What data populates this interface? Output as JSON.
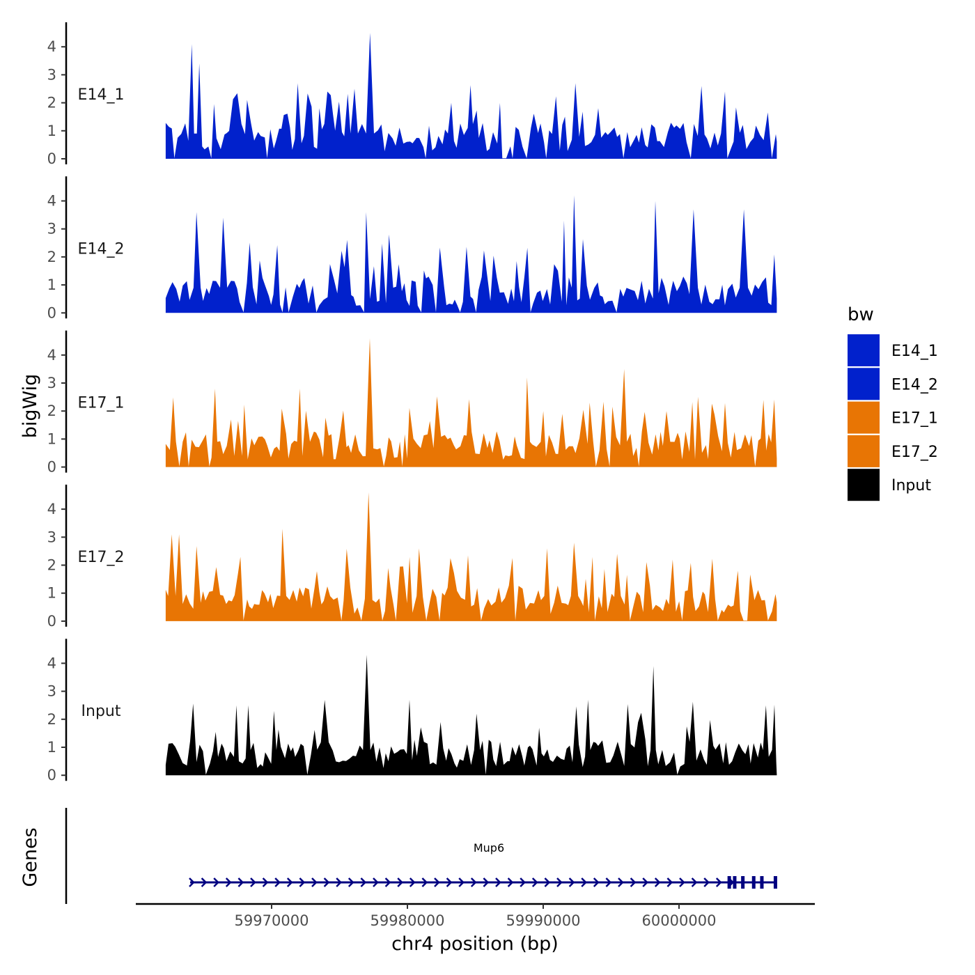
{
  "chart_data": {
    "type": "area",
    "title": "",
    "ylabel": "bigWig",
    "xlabel": "chr4 position (bp)",
    "genes_label": "Genes",
    "xlim": [
      59960000,
      60010000
    ],
    "ylim": [
      0,
      4.8
    ],
    "yticks": [
      0,
      1,
      2,
      3,
      4
    ],
    "xticks": [
      59970000,
      59980000,
      59990000,
      60000000
    ],
    "xtick_labels": [
      "59970000",
      "59980000",
      "59990000",
      "60000000"
    ],
    "legend": {
      "title": "bw",
      "placement": "right",
      "items": [
        {
          "label": "E14_1",
          "color": "#0121CC"
        },
        {
          "label": "E14_2",
          "color": "#0121CC"
        },
        {
          "label": "E17_1",
          "color": "#E87504"
        },
        {
          "label": "E17_2",
          "color": "#E87504"
        },
        {
          "label": "Input",
          "color": "#000000"
        }
      ]
    },
    "series": [
      {
        "name": "E14_1",
        "color": "#0121CC",
        "x_start": 59962200,
        "x_end": 60007200,
        "peaks": [
          [
            59964200,
            4.1
          ],
          [
            59964600,
            3.4
          ],
          [
            59977150,
            4.5
          ],
          [
            59972000,
            2.7
          ],
          [
            59983200,
            2.0
          ],
          [
            59992400,
            2.7
          ],
          [
            60001600,
            2.6
          ],
          [
            60003400,
            2.4
          ],
          [
            59976200,
            2.5
          ]
        ]
      },
      {
        "name": "E14_2",
        "color": "#0121CC",
        "x_start": 59962200,
        "x_end": 60007200,
        "peaks": [
          [
            59964500,
            3.6
          ],
          [
            59966500,
            3.4
          ],
          [
            59977100,
            3.6
          ],
          [
            59978700,
            2.8
          ],
          [
            59991600,
            3.3
          ],
          [
            59992200,
            4.2
          ],
          [
            59998200,
            4.0
          ],
          [
            60001000,
            3.7
          ],
          [
            60004900,
            3.7
          ]
        ]
      },
      {
        "name": "E17_1",
        "color": "#E87504",
        "x_start": 59962200,
        "x_end": 60007200,
        "peaks": [
          [
            59965800,
            2.8
          ],
          [
            59972000,
            2.8
          ],
          [
            59977100,
            4.6
          ],
          [
            59988800,
            3.2
          ],
          [
            59993500,
            2.3
          ],
          [
            59995900,
            3.5
          ],
          [
            59990100,
            2.0
          ],
          [
            59999200,
            2.0
          ]
        ]
      },
      {
        "name": "E17_2",
        "color": "#E87504",
        "x_start": 59962200,
        "x_end": 60007200,
        "peaks": [
          [
            59962700,
            3.1
          ],
          [
            59963100,
            3.1
          ],
          [
            59970900,
            3.3
          ],
          [
            59977200,
            4.6
          ],
          [
            59980900,
            2.6
          ],
          [
            59990200,
            2.6
          ],
          [
            59992300,
            2.8
          ],
          [
            59995400,
            2.4
          ],
          [
            59999600,
            2.2
          ]
        ]
      },
      {
        "name": "Input",
        "color": "#000000",
        "x_start": 59962200,
        "x_end": 60007200,
        "peaks": [
          [
            59977100,
            4.3
          ],
          [
            59998200,
            3.9
          ],
          [
            59993300,
            2.7
          ],
          [
            60006400,
            2.5
          ],
          [
            59985000,
            2.2
          ],
          [
            59980200,
            2.7
          ],
          [
            59968200,
            2.5
          ],
          [
            59970100,
            2.3
          ]
        ]
      }
    ],
    "gene": {
      "name": "Mup6",
      "strand": "+",
      "start": 59964000,
      "end": 60007200,
      "exons": [
        60003700,
        60004100,
        60004700,
        60005500,
        60006100,
        60007100
      ]
    }
  }
}
